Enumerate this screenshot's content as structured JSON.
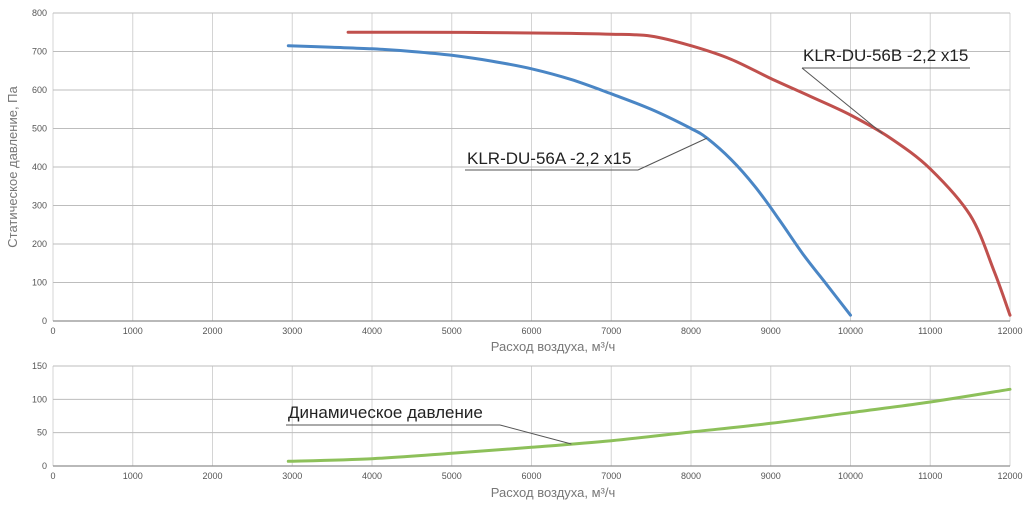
{
  "chart_data": [
    {
      "type": "line",
      "xlabel": "Расход воздуха, м³/ч",
      "ylabel": "Статическое давление, Па",
      "xlim": [
        0,
        12000
      ],
      "ylim": [
        0,
        800
      ],
      "x_ticks": [
        "0",
        "1000",
        "2000",
        "3000",
        "4000",
        "5000",
        "6000",
        "7000",
        "8000",
        "9000",
        "10000",
        "11000",
        "12000"
      ],
      "y_ticks": [
        "0",
        "100",
        "200",
        "300",
        "400",
        "500",
        "600",
        "700",
        "800"
      ],
      "grid": true,
      "series": [
        {
          "name": "KLR-DU-56A -2,2 x15",
          "color": "#4a86c5",
          "points": [
            [
              2950,
              715
            ],
            [
              3500,
              711
            ],
            [
              4000,
              707
            ],
            [
              4500,
              700
            ],
            [
              5000,
              690
            ],
            [
              5500,
              675
            ],
            [
              6000,
              655
            ],
            [
              6500,
              627
            ],
            [
              7000,
              590
            ],
            [
              7500,
              550
            ],
            [
              8000,
              500
            ],
            [
              8200,
              475
            ],
            [
              8500,
              420
            ],
            [
              8800,
              350
            ],
            [
              9100,
              265
            ],
            [
              9400,
              175
            ],
            [
              9700,
              95
            ],
            [
              10000,
              15
            ]
          ]
        },
        {
          "name": "KLR-DU-56B -2,2 x15",
          "color": "#c0504d",
          "points": [
            [
              3700,
              750
            ],
            [
              4500,
              750
            ],
            [
              5500,
              749
            ],
            [
              6500,
              747
            ],
            [
              7000,
              745
            ],
            [
              7500,
              740
            ],
            [
              8000,
              715
            ],
            [
              8500,
              680
            ],
            [
              9000,
              630
            ],
            [
              9500,
              583
            ],
            [
              10000,
              535
            ],
            [
              10500,
              475
            ],
            [
              11000,
              395
            ],
            [
              11500,
              275
            ],
            [
              11800,
              130
            ],
            [
              12000,
              15
            ]
          ]
        }
      ]
    },
    {
      "type": "line",
      "xlabel": "Расход воздуха, м³/ч",
      "xlim": [
        0,
        12000
      ],
      "ylim": [
        0,
        150
      ],
      "x_ticks": [
        "0",
        "1000",
        "2000",
        "3000",
        "4000",
        "5000",
        "6000",
        "7000",
        "8000",
        "9000",
        "10000",
        "11000",
        "12000"
      ],
      "y_ticks": [
        "0",
        "50",
        "100",
        "150"
      ],
      "grid": true,
      "series": [
        {
          "name": "Динамическое давление",
          "color": "#8dc05a",
          "points": [
            [
              2950,
              7
            ],
            [
              4000,
              11
            ],
            [
              5000,
              19
            ],
            [
              6000,
              28
            ],
            [
              7000,
              38
            ],
            [
              8000,
              51
            ],
            [
              9000,
              64
            ],
            [
              10000,
              80
            ],
            [
              11000,
              96
            ],
            [
              12000,
              115
            ]
          ]
        }
      ]
    }
  ]
}
